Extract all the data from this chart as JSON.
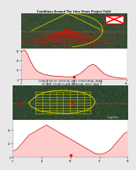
{
  "title1": "Conditions Around The Lime Stone Project Field",
  "title2_line1": "CONDITION OF VERTICAL AND HORIZONTAL AREA",
  "title2_line2": "OF LIME STONE KLAPA NUNGGAL WEST JAVA",
  "page_bg": "#e8e8e8",
  "panel_bg": "#ffffff",
  "panel1": {
    "map_bg": [
      35,
      55,
      30
    ],
    "topo_fill": "#ffcccc",
    "topo_line": "#cc2222",
    "profile_points": [
      55,
      58,
      60,
      62,
      60,
      57,
      53,
      48,
      43,
      38,
      34,
      30,
      26,
      23,
      20,
      18,
      16,
      15,
      14,
      13,
      12,
      11,
      10,
      10,
      9,
      9,
      8,
      8,
      8,
      7,
      7,
      7,
      6,
      6,
      6,
      6,
      6,
      6,
      6,
      6,
      5,
      5,
      5,
      5,
      5,
      5,
      5,
      5,
      5,
      6,
      6,
      7,
      8,
      9,
      10,
      11,
      12,
      14,
      16,
      18,
      20,
      22,
      24,
      26,
      28,
      29,
      30,
      31,
      31,
      30,
      29,
      27,
      25,
      23,
      20,
      18,
      16,
      14,
      12,
      11,
      10,
      9,
      8,
      7,
      6,
      6,
      5,
      5,
      4,
      4,
      4,
      3,
      3,
      3,
      2,
      2,
      2,
      2,
      2,
      2
    ]
  },
  "panel2": {
    "map_bg": [
      25,
      50,
      25
    ],
    "topo_fill": "#ffcccc",
    "topo_line": "#cc2222",
    "profile_points": [
      8,
      9,
      10,
      11,
      12,
      14,
      16,
      18,
      20,
      22,
      24,
      26,
      28,
      30,
      32,
      33,
      34,
      35,
      36,
      37,
      38,
      39,
      40,
      41,
      42,
      43,
      44,
      45,
      46,
      47,
      46,
      45,
      44,
      43,
      42,
      41,
      40,
      39,
      38,
      37,
      36,
      35,
      34,
      33,
      32,
      31,
      30,
      29,
      28,
      27,
      26,
      25,
      24,
      23,
      22,
      21,
      20,
      19,
      18,
      17,
      16,
      15,
      14,
      13,
      12,
      11,
      10,
      9,
      8,
      7,
      6,
      5,
      5,
      4,
      4,
      4,
      4,
      4,
      5,
      5,
      6,
      7,
      8,
      9,
      10,
      12,
      14,
      16,
      18,
      20,
      22,
      24,
      26,
      28,
      30,
      32,
      34,
      35,
      36,
      37
    ]
  }
}
